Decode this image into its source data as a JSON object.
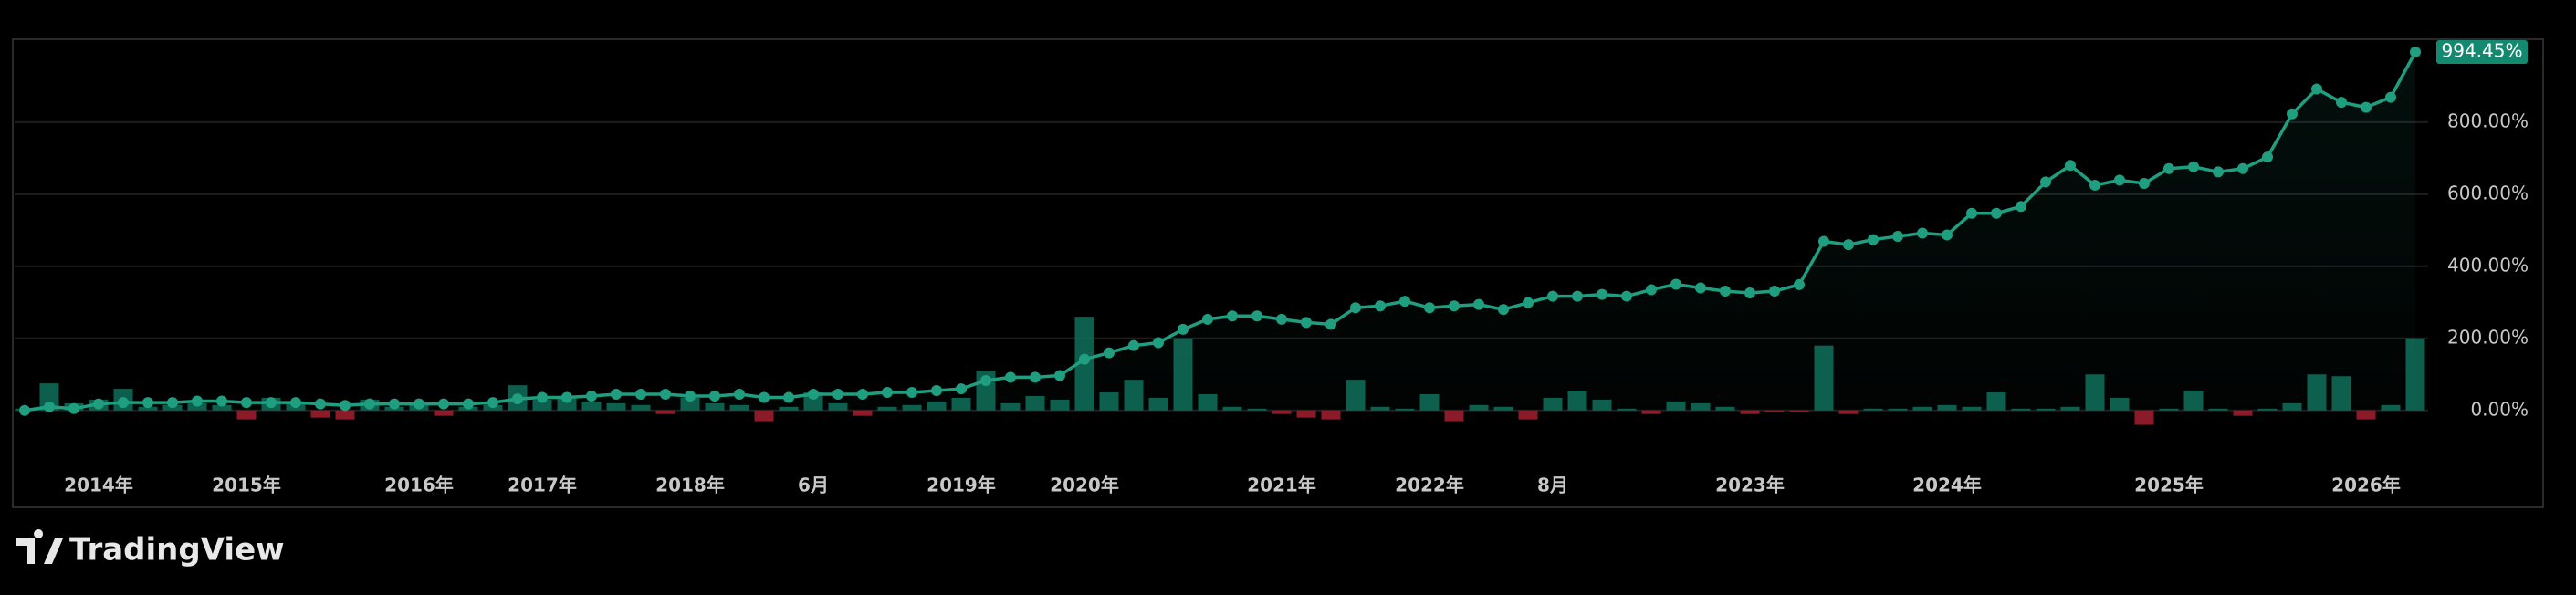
{
  "chart_data": {
    "type": "line",
    "categories": [
      null,
      null,
      null,
      "2014年",
      null,
      null,
      null,
      null,
      null,
      "2015年",
      null,
      null,
      null,
      null,
      null,
      null,
      "2016年",
      null,
      null,
      null,
      null,
      "2017年",
      null,
      null,
      null,
      null,
      null,
      "2018年",
      null,
      null,
      null,
      null,
      "6月",
      null,
      null,
      null,
      null,
      null,
      "2019年",
      null,
      null,
      null,
      null,
      "2020年",
      null,
      null,
      null,
      null,
      null,
      null,
      null,
      "2021年",
      null,
      null,
      null,
      null,
      null,
      "2022年",
      null,
      null,
      null,
      null,
      "8月",
      null,
      null,
      null,
      null,
      null,
      null,
      null,
      "2023年",
      null,
      null,
      null,
      null,
      null,
      null,
      null,
      "2024年",
      null,
      null,
      null,
      null,
      null,
      null,
      null,
      null,
      "2025年",
      null,
      null,
      null,
      null,
      null,
      null,
      null,
      "2026年",
      null,
      null
    ],
    "series": [
      {
        "color": "#1f9e80",
        "values": [
          0,
          10,
          5,
          18,
          22,
          22,
          22,
          26,
          26,
          22,
          22,
          22,
          18,
          14,
          18,
          18,
          18,
          18,
          18,
          22,
          32,
          36,
          36,
          40,
          45,
          45,
          45,
          40,
          40,
          45,
          36,
          36,
          45,
          45,
          45,
          50,
          50,
          55,
          60,
          83,
          92,
          92,
          97,
          142,
          160,
          180,
          188,
          225,
          253,
          262,
          262,
          253,
          244,
          239,
          285,
          290,
          303,
          285,
          290,
          294,
          280,
          299,
          317,
          317,
          322,
          317,
          335,
          350,
          340,
          331,
          326,
          331,
          349,
          469,
          460,
          474,
          483,
          492,
          487,
          547,
          547,
          566,
          634,
          680,
          625,
          639,
          630,
          671,
          676,
          662,
          671,
          703,
          823,
          892,
          855,
          841,
          869,
          994.45
        ]
      }
    ],
    "bars": {
      "up_color": "#0f6e5b",
      "down_color": "#a3202f",
      "values": [
        5,
        75,
        20,
        30,
        60,
        10,
        15,
        20,
        15,
        -25,
        35,
        20,
        -20,
        -25,
        30,
        10,
        15,
        -15,
        10,
        15,
        70,
        30,
        40,
        25,
        20,
        15,
        -10,
        35,
        20,
        15,
        -30,
        10,
        50,
        20,
        -15,
        10,
        15,
        25,
        35,
        110,
        20,
        40,
        30,
        260,
        50,
        85,
        35,
        200,
        45,
        10,
        5,
        -10,
        -20,
        -25,
        85,
        10,
        5,
        45,
        -30,
        15,
        10,
        -25,
        35,
        55,
        30,
        5,
        -10,
        25,
        20,
        10,
        -10,
        -5,
        -5,
        180,
        -10,
        5,
        5,
        10,
        15,
        10,
        50,
        5,
        5,
        10,
        100,
        35,
        -40,
        5,
        55,
        5,
        -15,
        5,
        20,
        100,
        95,
        -25,
        15,
        200
      ]
    },
    "ylim": [
      -150,
      1030
    ],
    "yticks": [
      {
        "value": 0,
        "label": "0.00%"
      },
      {
        "value": 200,
        "label": "200.00%"
      },
      {
        "value": 400,
        "label": "400.00%"
      },
      {
        "value": 600,
        "label": "600.00%"
      },
      {
        "value": 800,
        "label": "800.00%"
      }
    ],
    "last_label": {
      "value": 994.45,
      "label": "994.45%"
    },
    "grid": true
  },
  "brand": "TradingView"
}
